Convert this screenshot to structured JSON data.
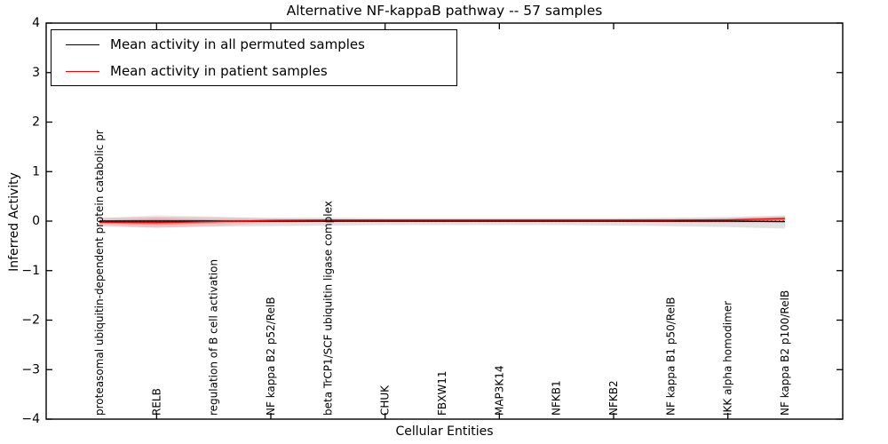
{
  "title": "Alternative NF-kappaB pathway -- 57 samples",
  "colors": {
    "frame": "#000000",
    "background": "#ffffff",
    "permuted_line": "#000000",
    "patient_line": "#ff0000",
    "permuted_band": "#c8c8c8",
    "patient_band": "#ff0000"
  },
  "legend": {
    "position": "upper left",
    "items": [
      {
        "label": "Mean activity in all permuted samples",
        "color": "#000000"
      },
      {
        "label": "Mean activity in patient samples",
        "color": "#ff0000"
      }
    ]
  },
  "chart_data": {
    "type": "line",
    "title": "Alternative NF-kappaB pathway -- 57 samples",
    "xlabel": "Cellular Entities",
    "ylabel": "Inferred Activity",
    "ylim": [
      -4,
      4
    ],
    "yticks": [
      -4,
      -3,
      -2,
      -1,
      0,
      1,
      2,
      3,
      4
    ],
    "xtick_category_indices": [
      1,
      3,
      5,
      7,
      9,
      11
    ],
    "grid": false,
    "legend_position": "upper left",
    "categories": [
      "proteasomal ubiquitin-dependent protein catabolic pr",
      "RELB",
      "regulation of B cell activation",
      "NF kappa B2 p52/RelB",
      "beta TrCP1/SCF ubiquitin ligase complex",
      "CHUK",
      "FBXW11",
      "MAP3K14",
      "NFKB1",
      "NFKB2",
      "NF kappa B1 p50/RelB",
      "IKK alpha homodimer",
      "NF kappa B2 p100/RelB"
    ],
    "series": [
      {
        "name": "Mean activity in all permuted samples",
        "color": "#000000",
        "values": [
          0,
          0,
          0,
          0,
          0,
          0,
          0,
          0,
          0,
          0,
          0,
          0,
          -0.01
        ]
      },
      {
        "name": "Mean activity in patient samples",
        "color": "#ff0000",
        "values": [
          -0.02,
          -0.03,
          -0.01,
          0.015,
          0.02,
          0.02,
          0.02,
          0.02,
          0.02,
          0.02,
          0.02,
          0.025,
          0.05
        ]
      }
    ],
    "bands": [
      {
        "name": "permuted-activity-range",
        "color": "#c8c8c8",
        "opacity": 0.55,
        "upper": [
          0.07,
          0.09,
          0.08,
          0.07,
          0.07,
          0.06,
          0.06,
          0.06,
          0.06,
          0.06,
          0.07,
          0.08,
          0.1
        ],
        "lower": [
          -0.11,
          -0.13,
          -0.11,
          -0.1,
          -0.09,
          -0.08,
          -0.08,
          -0.08,
          -0.08,
          -0.09,
          -0.1,
          -0.12,
          -0.15
        ]
      },
      {
        "name": "patient-activity-range-outer",
        "color": "#ff0000",
        "opacity": 0.1,
        "upper": [
          0.05,
          0.12,
          0.09,
          0.05,
          0.04,
          0.04,
          0.04,
          0.04,
          0.04,
          0.04,
          0.05,
          0.07,
          0.12
        ],
        "lower": [
          -0.08,
          -0.14,
          -0.1,
          -0.04,
          -0.02,
          -0.02,
          -0.02,
          -0.02,
          -0.02,
          -0.02,
          -0.03,
          -0.04,
          -0.02
        ]
      },
      {
        "name": "patient-activity-range-inner",
        "color": "#ff0000",
        "opacity": 0.22,
        "upper": [
          0.01,
          0.05,
          0.03,
          0.03,
          0.03,
          0.03,
          0.03,
          0.03,
          0.03,
          0.03,
          0.03,
          0.04,
          0.08
        ],
        "lower": [
          -0.05,
          -0.08,
          -0.05,
          -0.01,
          0.0,
          0.0,
          0.0,
          0.0,
          0.0,
          0.0,
          -0.01,
          -0.01,
          0.02
        ]
      }
    ],
    "zero_line": {
      "value": 0,
      "style": "dotted",
      "color": "#000000"
    }
  }
}
